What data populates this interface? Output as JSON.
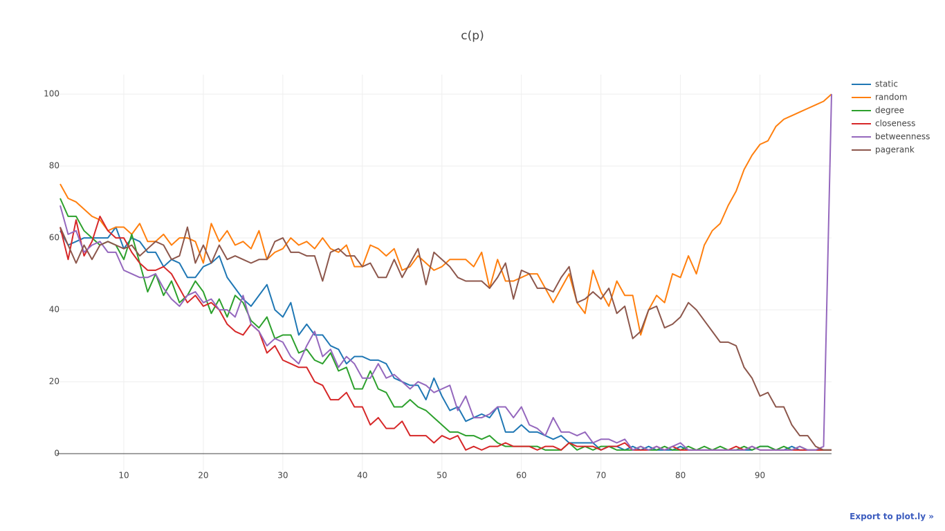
{
  "chart_data": {
    "type": "line",
    "title": "c(p)",
    "x": [
      2,
      3,
      4,
      5,
      6,
      7,
      8,
      9,
      10,
      11,
      12,
      13,
      14,
      15,
      16,
      17,
      18,
      19,
      20,
      21,
      22,
      23,
      24,
      25,
      26,
      27,
      28,
      29,
      30,
      31,
      32,
      33,
      34,
      35,
      36,
      37,
      38,
      39,
      40,
      41,
      42,
      43,
      44,
      45,
      46,
      47,
      48,
      49,
      50,
      51,
      52,
      53,
      54,
      55,
      56,
      57,
      58,
      59,
      60,
      61,
      62,
      63,
      64,
      65,
      66,
      67,
      68,
      69,
      70,
      71,
      72,
      73,
      74,
      75,
      76,
      77,
      78,
      79,
      80,
      81,
      82,
      83,
      84,
      85,
      86,
      87,
      88,
      89,
      90,
      91,
      92,
      93,
      94,
      95,
      96,
      97,
      98,
      99
    ],
    "series": [
      {
        "name": "static",
        "color": "#1f77b4",
        "values": [
          62,
          58,
          59,
          60,
          60,
          60,
          60,
          63,
          57,
          60,
          59,
          56,
          56,
          52,
          54,
          53,
          49,
          49,
          52,
          53,
          55,
          49,
          46,
          43,
          41,
          44,
          47,
          40,
          38,
          42,
          33,
          36,
          33,
          33,
          30,
          29,
          25,
          27,
          27,
          26,
          26,
          25,
          21,
          20,
          19,
          19,
          15,
          21,
          16,
          12,
          13,
          9,
          10,
          11,
          10,
          13,
          6,
          6,
          8,
          6,
          6,
          5,
          4,
          5,
          3,
          3,
          3,
          3,
          1,
          2,
          2,
          1,
          2,
          1,
          2,
          1,
          1,
          1,
          2,
          1,
          1,
          1,
          1,
          1,
          1,
          1,
          1,
          1,
          2,
          2,
          1,
          1,
          2,
          1,
          1,
          1,
          1,
          1
        ]
      },
      {
        "name": "random",
        "color": "#ff7f0e",
        "values": [
          75,
          71,
          70,
          68,
          66,
          65,
          62,
          63,
          63,
          61,
          64,
          59,
          59,
          61,
          58,
          60,
          60,
          59,
          53,
          64,
          59,
          62,
          58,
          59,
          57,
          62,
          54,
          56,
          57,
          60,
          58,
          59,
          57,
          60,
          57,
          56,
          58,
          52,
          52,
          58,
          57,
          55,
          57,
          51,
          52,
          55,
          53,
          51,
          52,
          54,
          54,
          54,
          52,
          56,
          46,
          54,
          48,
          48,
          49,
          50,
          50,
          46,
          42,
          46,
          50,
          42,
          39,
          51,
          45,
          41,
          48,
          44,
          44,
          33,
          40,
          44,
          42,
          50,
          49,
          55,
          50,
          58,
          62,
          64,
          69,
          73,
          79,
          83,
          86,
          87,
          91,
          93,
          94,
          95,
          96,
          97,
          98,
          100
        ]
      },
      {
        "name": "degree",
        "color": "#2ca02c",
        "values": [
          71,
          66,
          66,
          62,
          60,
          58,
          59,
          58,
          54,
          61,
          53,
          45,
          50,
          44,
          48,
          42,
          44,
          48,
          45,
          39,
          43,
          38,
          44,
          42,
          37,
          35,
          38,
          32,
          33,
          33,
          28,
          29,
          26,
          25,
          28,
          23,
          24,
          18,
          18,
          23,
          18,
          17,
          13,
          13,
          15,
          13,
          12,
          10,
          8,
          6,
          6,
          5,
          5,
          4,
          5,
          3,
          2,
          2,
          2,
          2,
          2,
          1,
          1,
          1,
          3,
          1,
          2,
          1,
          2,
          2,
          1,
          1,
          1,
          2,
          1,
          1,
          2,
          1,
          1,
          2,
          1,
          2,
          1,
          2,
          1,
          1,
          2,
          1,
          2,
          2,
          1,
          2,
          1,
          2,
          1,
          1,
          1,
          1
        ]
      },
      {
        "name": "closeness",
        "color": "#d62728",
        "values": [
          63,
          54,
          65,
          55,
          59,
          66,
          62,
          60,
          60,
          56,
          53,
          51,
          51,
          52,
          50,
          46,
          42,
          44,
          41,
          42,
          40,
          36,
          34,
          33,
          36,
          34,
          28,
          30,
          26,
          25,
          24,
          24,
          20,
          19,
          15,
          15,
          17,
          13,
          13,
          8,
          10,
          7,
          7,
          9,
          5,
          5,
          5,
          3,
          5,
          4,
          5,
          1,
          2,
          1,
          2,
          2,
          3,
          2,
          2,
          2,
          1,
          2,
          2,
          1,
          3,
          2,
          2,
          2,
          1,
          2,
          2,
          3,
          1,
          1,
          1,
          2,
          1,
          2,
          1,
          1,
          1,
          1,
          1,
          1,
          1,
          2,
          1,
          2,
          1,
          1,
          1,
          1,
          1,
          1,
          1,
          1,
          1,
          1
        ]
      },
      {
        "name": "betweenness",
        "color": "#9467bd",
        "values": [
          69,
          61,
          62,
          56,
          58,
          59,
          56,
          56,
          51,
          50,
          49,
          49,
          50,
          46,
          43,
          41,
          44,
          45,
          42,
          43,
          40,
          40,
          38,
          44,
          36,
          34,
          30,
          32,
          31,
          27,
          25,
          30,
          34,
          27,
          29,
          24,
          27,
          25,
          21,
          21,
          25,
          21,
          22,
          20,
          18,
          20,
          19,
          17,
          18,
          19,
          12,
          16,
          10,
          10,
          11,
          13,
          13,
          10,
          13,
          8,
          7,
          5,
          10,
          6,
          6,
          5,
          6,
          3,
          4,
          4,
          3,
          4,
          1,
          2,
          1,
          2,
          1,
          2,
          3,
          1,
          1,
          1,
          1,
          1,
          1,
          1,
          1,
          2,
          1,
          1,
          1,
          1,
          1,
          2,
          1,
          1,
          2,
          100
        ]
      },
      {
        "name": "pagerank",
        "color": "#8c564b",
        "values": [
          63,
          58,
          53,
          58,
          54,
          58,
          59,
          58,
          57,
          58,
          55,
          57,
          59,
          58,
          54,
          55,
          63,
          53,
          58,
          53,
          58,
          54,
          55,
          54,
          53,
          54,
          54,
          59,
          60,
          56,
          56,
          55,
          55,
          48,
          56,
          57,
          55,
          55,
          52,
          53,
          49,
          49,
          54,
          49,
          53,
          57,
          47,
          56,
          54,
          52,
          49,
          48,
          48,
          48,
          46,
          49,
          53,
          43,
          51,
          50,
          46,
          46,
          45,
          49,
          52,
          42,
          43,
          45,
          43,
          46,
          39,
          41,
          32,
          34,
          40,
          41,
          35,
          36,
          38,
          42,
          40,
          37,
          34,
          31,
          31,
          30,
          24,
          21,
          16,
          17,
          13,
          13,
          8,
          5,
          5,
          2,
          1,
          1
        ]
      }
    ],
    "xlim": [
      2,
      99
    ],
    "xticks": [
      10,
      20,
      30,
      40,
      50,
      60,
      70,
      80,
      90
    ],
    "ylim": [
      -4.6,
      105.4
    ],
    "yticks": [
      0,
      20,
      40,
      60,
      80,
      100
    ],
    "grid": true,
    "legend": "right"
  },
  "export_link": "Export to plot.ly »"
}
